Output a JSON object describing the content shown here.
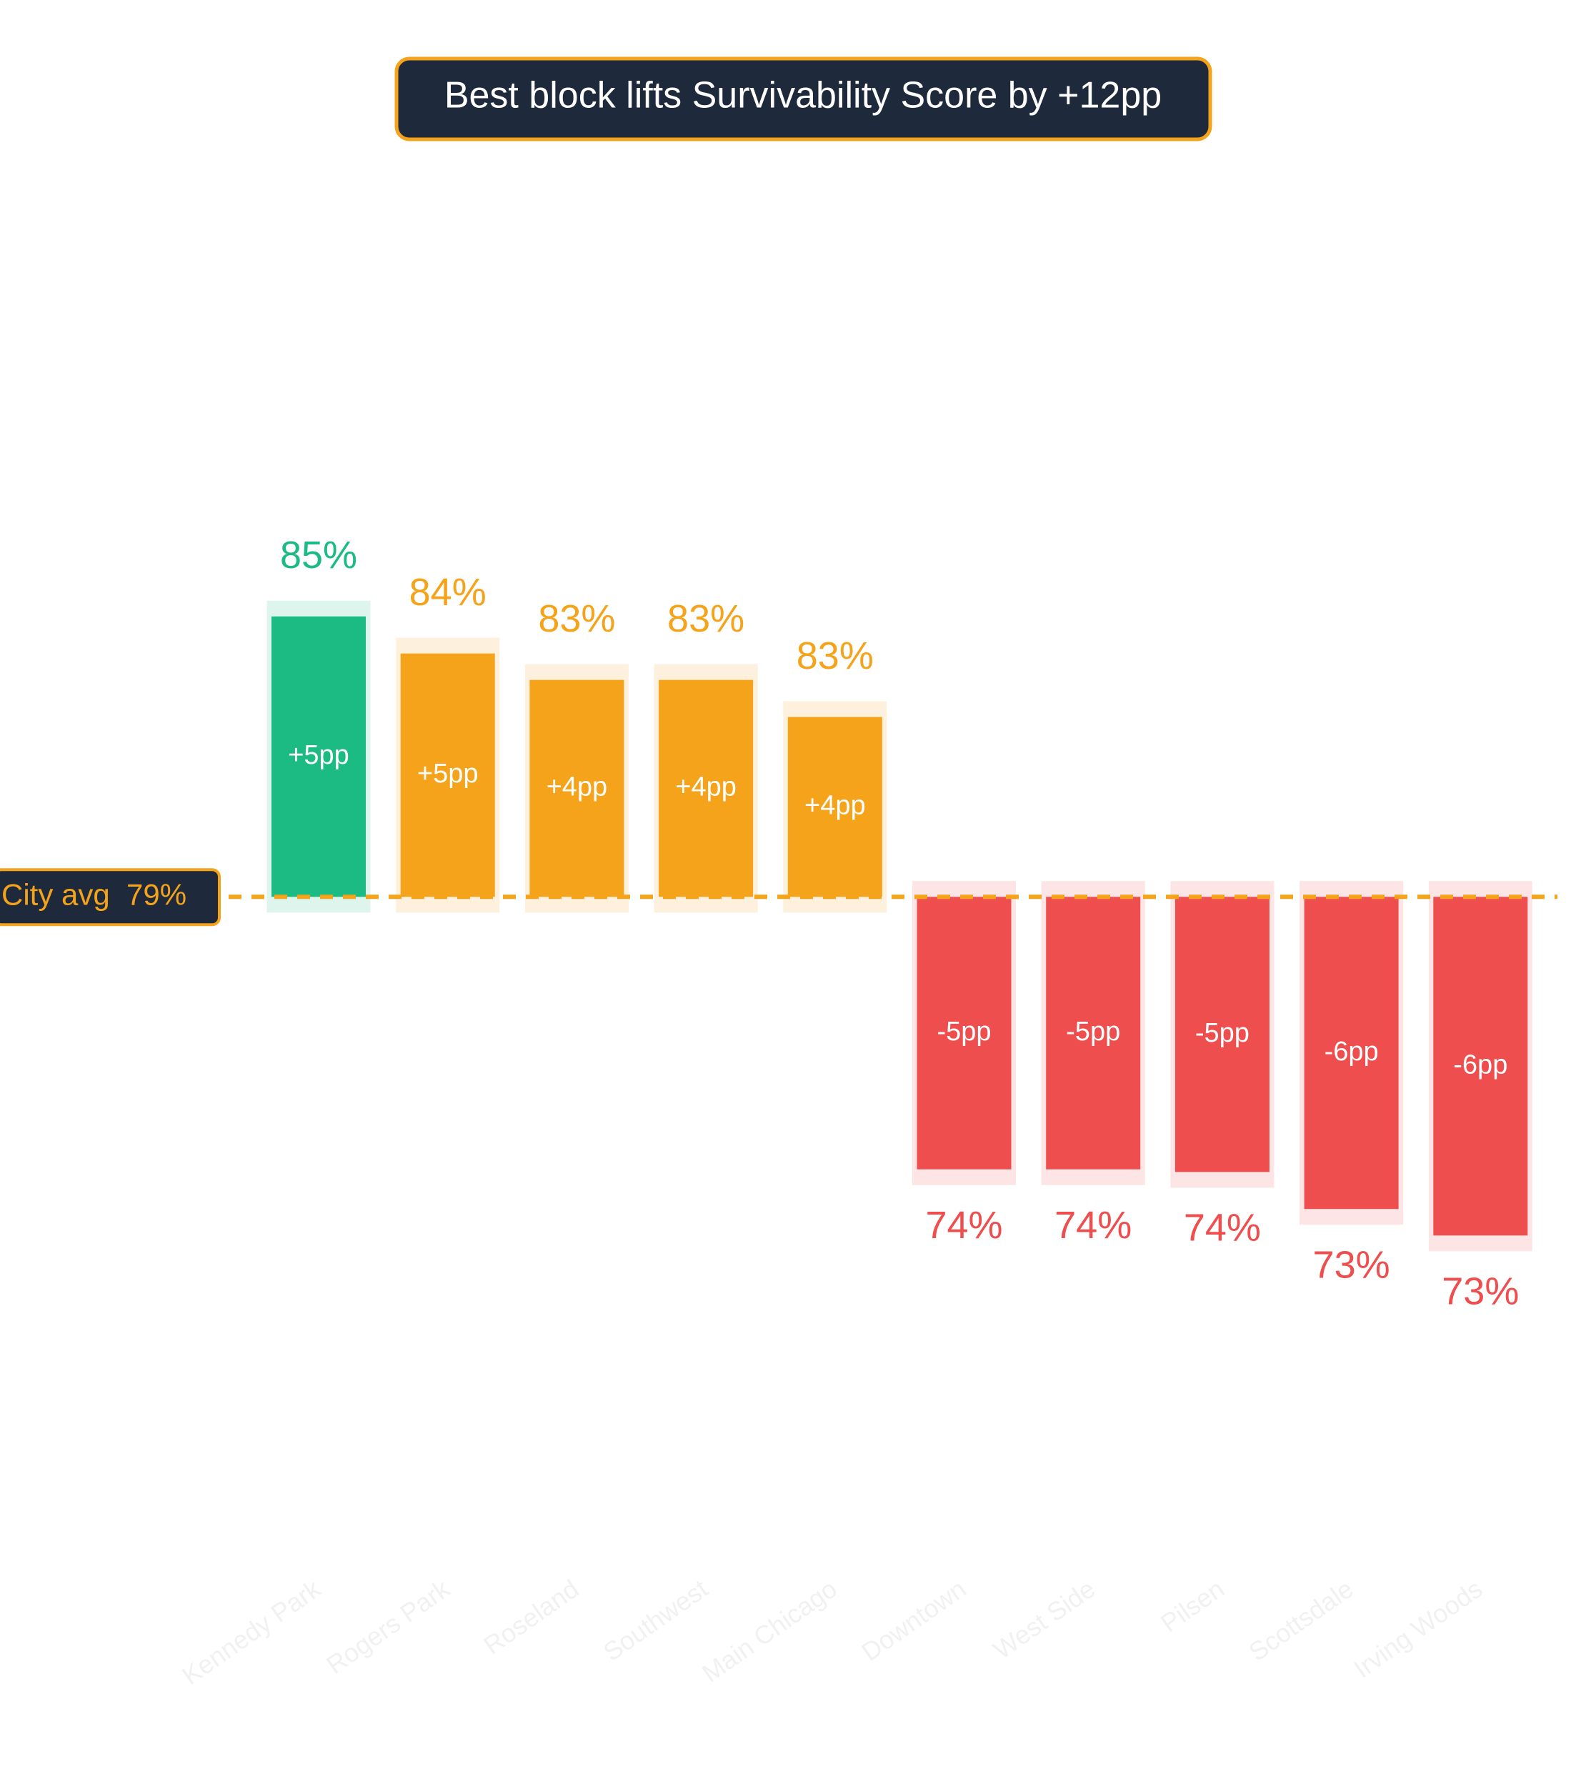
{
  "chart_data": {
    "type": "diverging-bar",
    "title": "Best block lifts Survivability Score by +12pp",
    "categories": [
      "Kennedy Park",
      "Rogers Park",
      "Roseland",
      "Southwest",
      "Main Chicago",
      "Downtown",
      "West Side",
      "Pilsen",
      "Scottsdale",
      "Irving Woods"
    ],
    "values": [
      84.6,
      83.9,
      83.4,
      83.4,
      82.7,
      74.15,
      74.15,
      74.1,
      73.4,
      72.9
    ],
    "value_labels": [
      "85%",
      "84%",
      "83%",
      "83%",
      "83%",
      "74%",
      "74%",
      "74%",
      "73%",
      "73%"
    ],
    "delta_labels": [
      "+5pp",
      "+5pp",
      "+4pp",
      "+4pp",
      "+4pp",
      "-5pp",
      "-5pp",
      "-5pp",
      "-6pp",
      "-6pp"
    ],
    "colors": [
      "#1dbb84",
      "#f4a31a",
      "#f4a31a",
      "#f4a31a",
      "#f4a31a",
      "#ef4e4e",
      "#ef4e4e",
      "#ef4e4e",
      "#ef4e4e",
      "#ef4e4e"
    ],
    "reference": {
      "value": 79.3,
      "label": "City avg  79%",
      "color": "#f4a31a"
    },
    "ylim": [
      70,
      88
    ]
  }
}
